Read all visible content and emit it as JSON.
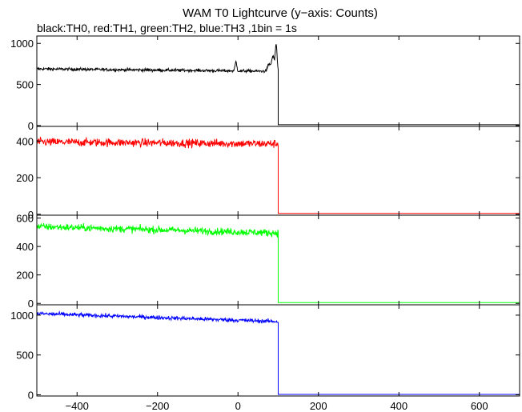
{
  "chart_data": {
    "type": "line",
    "title": "WAM T0 Lightcurve (y−axis: Counts)",
    "subtitle": "black:TH0, red:TH1, green:TH2, blue:TH3 ,1bin = 1s",
    "xlim": [
      -500,
      700
    ],
    "x_ticks": [
      -400,
      -200,
      0,
      200,
      400,
      600
    ],
    "x_tick_labels": [
      "−400",
      "−200",
      "0",
      "200",
      "400",
      "600"
    ],
    "grid": false,
    "panels": [
      {
        "name": "TH0",
        "color": "#000000",
        "ylim": [
          -10,
          1090
        ],
        "y_ticks": [
          0,
          500,
          1000
        ],
        "level_start": 690,
        "level_end": 660,
        "noise": 13,
        "bumps": [
          {
            "x": -5,
            "height": 110,
            "width": 3
          },
          {
            "x": 77,
            "height": 80,
            "width": 5
          },
          {
            "x": 87,
            "height": 180,
            "width": 5
          },
          {
            "x": 95,
            "height": 320,
            "width": 3
          }
        ],
        "cutoff": 100,
        "after": 10
      },
      {
        "name": "TH1",
        "color": "#ff0000",
        "ylim": [
          -5,
          480
        ],
        "y_ticks": [
          0,
          200,
          400
        ],
        "level_start": 395,
        "level_end": 385,
        "noise": 16,
        "bumps": [],
        "cutoff": 100,
        "after": 5
      },
      {
        "name": "TH2",
        "color": "#00ff00",
        "ylim": [
          -10,
          620
        ],
        "y_ticks": [
          0,
          200,
          400,
          600
        ],
        "level_start": 540,
        "level_end": 495,
        "noise": 18,
        "bumps": [],
        "cutoff": 100,
        "after": 5
      },
      {
        "name": "TH3",
        "color": "#0000ff",
        "ylim": [
          -15,
          1130
        ],
        "y_ticks": [
          0,
          500,
          1000
        ],
        "level_start": 1020,
        "level_end": 920,
        "noise": 18,
        "bumps": [],
        "cutoff": 100,
        "after": 5
      }
    ]
  }
}
